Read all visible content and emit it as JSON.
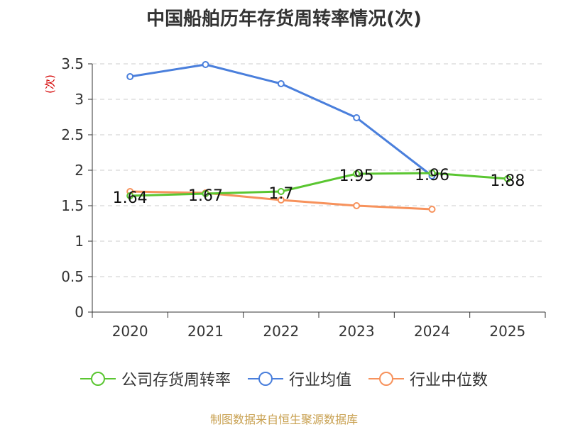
{
  "chart_data": {
    "type": "line",
    "title": "中国船舶历年存货周转率情况(次)",
    "ylabel": "(次)",
    "xlabel": "",
    "ylim": [
      0,
      3.5
    ],
    "yticks": [
      "0",
      "0.5",
      "1",
      "1.5",
      "2",
      "2.5",
      "3",
      "3.5"
    ],
    "categories": [
      "2020",
      "2021",
      "2022",
      "2023",
      "2024",
      "2025"
    ],
    "grid": true,
    "legend_position": "bottom",
    "series": [
      {
        "name": "公司存货周转率",
        "color": "#5ac631",
        "values": [
          1.64,
          1.67,
          1.7,
          1.95,
          1.96,
          1.88
        ],
        "labels": [
          "1.64",
          "1.67",
          "1.7",
          "1.95",
          "1.96",
          "1.88"
        ]
      },
      {
        "name": "行业均值",
        "color": "#4a7fdc",
        "values": [
          3.32,
          3.49,
          3.22,
          2.74,
          1.92,
          null
        ]
      },
      {
        "name": "行业中位数",
        "color": "#f7925c",
        "values": [
          1.7,
          1.68,
          1.58,
          1.5,
          1.45,
          null
        ]
      }
    ]
  },
  "source": "制图数据来自恒生聚源数据库"
}
